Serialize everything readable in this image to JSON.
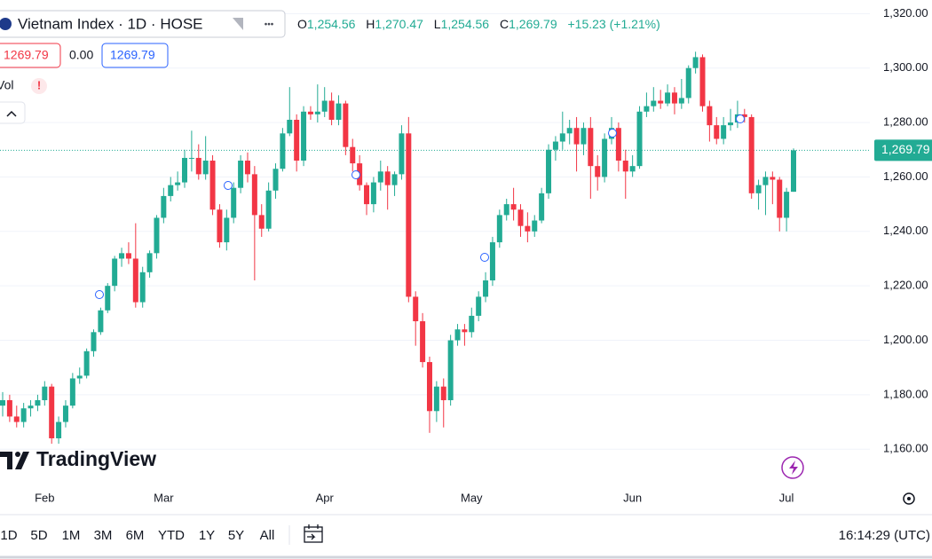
{
  "header": {
    "symbol": "Vietnam Index · 1D · HOSE",
    "menu": "•••",
    "ohlc_keys": [
      "O",
      "H",
      "L",
      "C"
    ],
    "ohlc_values": [
      "1,254.56",
      "1,270.47",
      "1,254.56",
      "1,269.79"
    ],
    "change": "+15.23 (+1.21%)",
    "bid": "1269.79",
    "spread": "0.00",
    "ask": "1269.79",
    "volume": "Vol",
    "alert": "!",
    "logo": "TradingView"
  },
  "toolbar": {
    "ranges": [
      "1D",
      "5D",
      "1M",
      "3M",
      "6M",
      "YTD",
      "1Y",
      "5Y",
      "All"
    ],
    "time": "16:14:29 (UTC)"
  },
  "chart_data": {
    "type": "candlestick",
    "up_color": "#22ab94",
    "down_color": "#f23645",
    "ylim": [
      1149,
      1325
    ],
    "yticks": [
      {
        "value": 1160,
        "label": "1,160.00"
      },
      {
        "value": 1180,
        "label": "1,180.00"
      },
      {
        "value": 1200,
        "label": "1,200.00"
      },
      {
        "value": 1220,
        "label": "1,220.00"
      },
      {
        "value": 1240,
        "label": "1,240.00"
      },
      {
        "value": 1260,
        "label": "1,260.00"
      },
      {
        "value": 1280,
        "label": "1,280.00"
      },
      {
        "value": 1300,
        "label": "1,300.00"
      },
      {
        "value": 1320,
        "label": "1,320.00"
      }
    ],
    "grid": true,
    "last_price": {
      "value": 1269.79,
      "label": "1,269.79"
    },
    "categories": [
      null,
      null,
      null,
      null,
      null,
      null,
      "Feb",
      null,
      null,
      null,
      null,
      null,
      null,
      null,
      null,
      null,
      null,
      null,
      null,
      null,
      null,
      null,
      null,
      "Mar",
      null,
      null,
      null,
      null,
      null,
      null,
      null,
      null,
      null,
      null,
      null,
      null,
      null,
      null,
      null,
      null,
      null,
      null,
      null,
      null,
      null,
      null,
      "Apr",
      null,
      null,
      null,
      null,
      null,
      null,
      null,
      null,
      null,
      null,
      null,
      null,
      null,
      null,
      null,
      null,
      null,
      null,
      null,
      null,
      "May",
      null,
      null,
      null,
      null,
      null,
      null,
      null,
      null,
      null,
      null,
      null,
      null,
      null,
      null,
      null,
      null,
      null,
      null,
      null,
      null,
      null,
      null,
      "Jun",
      null,
      null,
      null,
      null,
      null,
      null,
      null,
      null,
      null,
      null,
      null,
      null,
      null,
      null,
      null,
      null,
      null,
      null,
      null,
      null,
      null,
      "Jul",
      null
    ],
    "ohlc": [
      [
        1176,
        1181,
        1172,
        1178
      ],
      [
        1178,
        1180,
        1170,
        1172
      ],
      [
        1172,
        1176,
        1168,
        1170
      ],
      [
        1170,
        1177,
        1168,
        1175
      ],
      [
        1175,
        1178,
        1172,
        1176
      ],
      [
        1176,
        1180,
        1174,
        1178
      ],
      [
        1178,
        1185,
        1176,
        1183
      ],
      [
        1183,
        1184,
        1162,
        1164
      ],
      [
        1164,
        1172,
        1162,
        1170
      ],
      [
        1170,
        1178,
        1168,
        1176
      ],
      [
        1176,
        1188,
        1175,
        1186
      ],
      [
        1186,
        1190,
        1184,
        1187
      ],
      [
        1187,
        1197,
        1186,
        1196
      ],
      [
        1196,
        1204,
        1194,
        1203
      ],
      [
        1203,
        1212,
        1202,
        1211
      ],
      [
        1211,
        1221,
        1210,
        1220
      ],
      [
        1220,
        1231,
        1218,
        1230
      ],
      [
        1230,
        1234,
        1227,
        1232
      ],
      [
        1232,
        1236,
        1228,
        1230
      ],
      [
        1230,
        1243,
        1212,
        1214
      ],
      [
        1214,
        1227,
        1212,
        1225
      ],
      [
        1225,
        1233,
        1223,
        1232
      ],
      [
        1232,
        1246,
        1230,
        1245
      ],
      [
        1245,
        1256,
        1243,
        1253
      ],
      [
        1253,
        1260,
        1251,
        1257
      ],
      [
        1257,
        1262,
        1255,
        1258
      ],
      [
        1258,
        1270,
        1256,
        1267
      ],
      [
        1267,
        1277,
        1262,
        1267
      ],
      [
        1267,
        1272,
        1259,
        1261
      ],
      [
        1261,
        1275,
        1259,
        1266
      ],
      [
        1266,
        1268,
        1246,
        1248
      ],
      [
        1248,
        1250,
        1234,
        1236
      ],
      [
        1236,
        1248,
        1233,
        1245
      ],
      [
        1245,
        1258,
        1243,
        1256
      ],
      [
        1256,
        1268,
        1254,
        1266
      ],
      [
        1266,
        1269,
        1258,
        1261
      ],
      [
        1261,
        1264,
        1222,
        1246
      ],
      [
        1246,
        1250,
        1238,
        1241
      ],
      [
        1241,
        1258,
        1240,
        1255
      ],
      [
        1255,
        1265,
        1252,
        1263
      ],
      [
        1263,
        1278,
        1262,
        1276
      ],
      [
        1276,
        1293,
        1275,
        1281
      ],
      [
        1281,
        1283,
        1262,
        1266
      ],
      [
        1266,
        1286,
        1264,
        1284
      ],
      [
        1284,
        1286,
        1281,
        1283
      ],
      [
        1283,
        1294,
        1280,
        1284
      ],
      [
        1284,
        1293,
        1282,
        1288
      ],
      [
        1288,
        1291,
        1279,
        1281
      ],
      [
        1281,
        1290,
        1279,
        1287
      ],
      [
        1287,
        1288,
        1268,
        1271
      ],
      [
        1271,
        1274,
        1262,
        1265
      ],
      [
        1265,
        1268,
        1255,
        1257
      ],
      [
        1257,
        1258,
        1246,
        1250
      ],
      [
        1250,
        1260,
        1247,
        1258
      ],
      [
        1258,
        1266,
        1255,
        1262
      ],
      [
        1262,
        1264,
        1248,
        1257
      ],
      [
        1257,
        1262,
        1253,
        1261
      ],
      [
        1261,
        1279,
        1259,
        1276
      ],
      [
        1276,
        1282,
        1214,
        1216
      ],
      [
        1216,
        1218,
        1198,
        1207
      ],
      [
        1207,
        1210,
        1190,
        1192
      ],
      [
        1192,
        1194,
        1166,
        1174
      ],
      [
        1174,
        1185,
        1170,
        1183
      ],
      [
        1183,
        1186,
        1168,
        1178
      ],
      [
        1178,
        1202,
        1176,
        1200
      ],
      [
        1200,
        1206,
        1198,
        1204
      ],
      [
        1204,
        1206,
        1198,
        1203
      ],
      [
        1203,
        1212,
        1201,
        1209
      ],
      [
        1209,
        1218,
        1207,
        1216
      ],
      [
        1216,
        1225,
        1214,
        1222
      ],
      [
        1222,
        1238,
        1220,
        1236
      ],
      [
        1236,
        1248,
        1234,
        1246
      ],
      [
        1246,
        1252,
        1244,
        1250
      ],
      [
        1250,
        1256,
        1244,
        1248
      ],
      [
        1248,
        1250,
        1238,
        1242
      ],
      [
        1242,
        1247,
        1236,
        1240
      ],
      [
        1240,
        1246,
        1238,
        1244
      ],
      [
        1244,
        1256,
        1243,
        1254
      ],
      [
        1254,
        1272,
        1252,
        1270
      ],
      [
        1270,
        1275,
        1266,
        1273
      ],
      [
        1273,
        1284,
        1270,
        1276
      ],
      [
        1276,
        1281,
        1272,
        1278
      ],
      [
        1278,
        1282,
        1262,
        1272
      ],
      [
        1272,
        1280,
        1268,
        1278
      ],
      [
        1278,
        1282,
        1252,
        1264
      ],
      [
        1264,
        1268,
        1255,
        1260
      ],
      [
        1260,
        1276,
        1258,
        1274
      ],
      [
        1274,
        1282,
        1272,
        1278
      ],
      [
        1278,
        1280,
        1262,
        1266
      ],
      [
        1266,
        1270,
        1252,
        1262
      ],
      [
        1262,
        1268,
        1260,
        1264
      ],
      [
        1264,
        1286,
        1263,
        1284
      ],
      [
        1284,
        1291,
        1282,
        1286
      ],
      [
        1286,
        1293,
        1284,
        1288
      ],
      [
        1288,
        1292,
        1285,
        1287
      ],
      [
        1287,
        1294,
        1286,
        1291
      ],
      [
        1291,
        1293,
        1283,
        1287
      ],
      [
        1287,
        1296,
        1285,
        1289
      ],
      [
        1289,
        1301,
        1287,
        1300
      ],
      [
        1300,
        1306,
        1298,
        1304
      ],
      [
        1304,
        1305,
        1284,
        1286
      ],
      [
        1286,
        1288,
        1273,
        1279
      ],
      [
        1279,
        1282,
        1272,
        1274
      ],
      [
        1274,
        1282,
        1272,
        1279
      ],
      [
        1279,
        1285,
        1277,
        1280
      ],
      [
        1280,
        1288,
        1278,
        1283
      ],
      [
        1283,
        1285,
        1280,
        1282
      ],
      [
        1282,
        1283,
        1252,
        1254
      ],
      [
        1254,
        1259,
        1248,
        1257
      ],
      [
        1257,
        1262,
        1246,
        1260
      ],
      [
        1260,
        1262,
        1250,
        1259
      ],
      [
        1259,
        1260,
        1240,
        1245
      ],
      [
        1245,
        1256,
        1240,
        1254.56
      ],
      [
        1254.56,
        1270.47,
        1254.56,
        1269.79
      ]
    ]
  }
}
